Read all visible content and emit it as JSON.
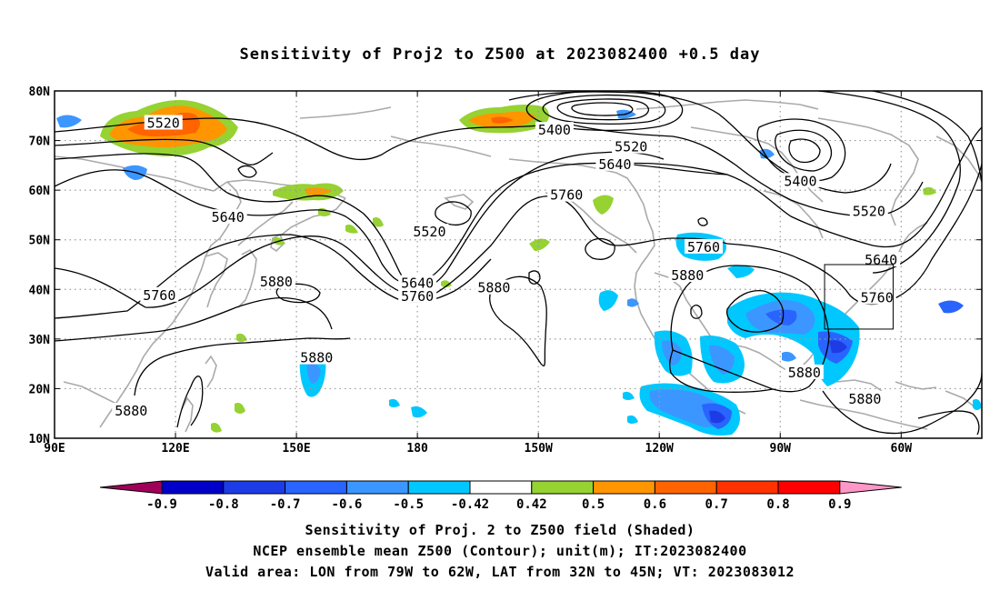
{
  "title": "Sensitivity of Proj2 to Z500 at 2023082400 +0.5 day",
  "lat_labels": [
    "80N",
    "70N",
    "60N",
    "50N",
    "40N",
    "30N",
    "20N",
    "10N"
  ],
  "lon_labels": [
    "90E",
    "120E",
    "150E",
    "180",
    "150W",
    "120W",
    "90W",
    "60W"
  ],
  "contour_labels": [
    {
      "text": "5520",
      "lon": 117,
      "lat": 73.5
    },
    {
      "text": "5640",
      "lon": 133,
      "lat": 54.5
    },
    {
      "text": "5880",
      "lon": 145,
      "lat": 41.5
    },
    {
      "text": "5760",
      "lon": 116,
      "lat": 38.8
    },
    {
      "text": "5880",
      "lon": 155,
      "lat": 26.2
    },
    {
      "text": "5880",
      "lon": 109,
      "lat": 15.5
    },
    {
      "text": "5400",
      "lon": 214,
      "lat": 72.1
    },
    {
      "text": "5520",
      "lon": 233,
      "lat": 68.7
    },
    {
      "text": "5640",
      "lon": 229,
      "lat": 65.2
    },
    {
      "text": "5760",
      "lon": 217,
      "lat": 59.0
    },
    {
      "text": "5520",
      "lon": 183,
      "lat": 51.6
    },
    {
      "text": "5640",
      "lon": 180,
      "lat": 41.2
    },
    {
      "text": "5760",
      "lon": 180,
      "lat": 38.6
    },
    {
      "text": "5880",
      "lon": 199,
      "lat": 40.3
    },
    {
      "text": "5760",
      "lon": 251,
      "lat": 48.5
    },
    {
      "text": "5880",
      "lon": 247,
      "lat": 42.8
    },
    {
      "text": "5400",
      "lon": 275,
      "lat": 61.8
    },
    {
      "text": "5520",
      "lon": 292,
      "lat": 55.7
    },
    {
      "text": "5640",
      "lon": 295,
      "lat": 45.9
    },
    {
      "text": "5760",
      "lon": 294,
      "lat": 38.3
    },
    {
      "text": "5880",
      "lon": 276,
      "lat": 23.2
    },
    {
      "text": "5880",
      "lon": 291,
      "lat": 17.9
    }
  ],
  "colorbar": {
    "labels": [
      "-0.9",
      "-0.8",
      "-0.7",
      "-0.6",
      "-0.5",
      "-0.42",
      "0.42",
      "0.5",
      "0.6",
      "0.7",
      "0.8",
      "0.9"
    ],
    "colors": [
      "#a0005a",
      "#0000c8",
      "#1e3ce6",
      "#2a64ff",
      "#3c96ff",
      "#00c8ff",
      "#ffffff",
      "#96d232",
      "#ff9600",
      "#ff6400",
      "#ff3200",
      "#ff0000",
      "#ff96c8"
    ]
  },
  "caption": [
    "Sensitivity of Proj. 2 to Z500 field (Shaded)",
    "NCEP ensemble mean Z500 (Contour); unit(m); IT:2023082400",
    "Valid area: LON from 79W to 62W, LAT from 32N to 45N; VT: 2023083012"
  ],
  "valid_area": {
    "lon_min": -79,
    "lon_max": -62,
    "lat_min": 32,
    "lat_max": 45
  }
}
